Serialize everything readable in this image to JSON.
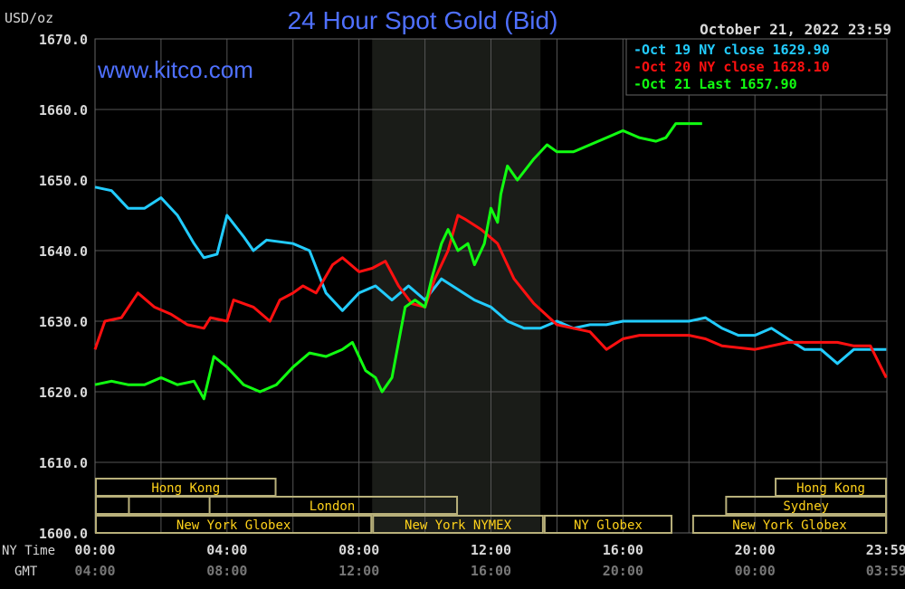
{
  "chart_data": {
    "type": "line",
    "title": "24 Hour Spot Gold (Bid)",
    "watermark": "www.kitco.com",
    "unit_label": "USD/oz",
    "date_label": "October 21, 2022 23:59",
    "ylim": [
      1600,
      1670
    ],
    "yticks": [
      1600,
      1610,
      1620,
      1630,
      1640,
      1650,
      1660,
      1670
    ],
    "ytick_labels": [
      "1600.0",
      "1610.0",
      "1620.0",
      "1630.0",
      "1640.0",
      "1650.0",
      "1660.0",
      "1670.0"
    ],
    "xlim": [
      0,
      24
    ],
    "xtick_hours": [
      0,
      4,
      8,
      12,
      16,
      20,
      23.98
    ],
    "x_row_labels": {
      "ny": "NY Time",
      "gmt": "GMT"
    },
    "xtick_labels_ny": [
      "00:00",
      "04:00",
      "08:00",
      "12:00",
      "16:00",
      "20:00",
      "23:59"
    ],
    "xtick_labels_gmt": [
      "04:00",
      "08:00",
      "12:00",
      "16:00",
      "20:00",
      "00:00",
      "03:59"
    ],
    "shaded_hours": [
      8.4,
      13.5
    ],
    "series": [
      {
        "name": "Oct 19 NY close 1629.90",
        "color": "#22ccff",
        "x": [
          0,
          0.5,
          1,
          1.5,
          2,
          2.5,
          3,
          3.3,
          3.7,
          4,
          4.5,
          4.8,
          5.2,
          6,
          6.5,
          7,
          7.5,
          8,
          8.5,
          9,
          9.5,
          10,
          10.5,
          11,
          11.5,
          12,
          12.5,
          13,
          13.5,
          14,
          14.5,
          15,
          15.5,
          16,
          17,
          18,
          18.5,
          19,
          19.5,
          20,
          20.5,
          21,
          21.5,
          22,
          22.5,
          23,
          23.5,
          23.98
        ],
        "y": [
          1649,
          1648.5,
          1646,
          1646,
          1647.5,
          1645,
          1641,
          1639,
          1639.5,
          1645,
          1642,
          1640,
          1641.5,
          1641,
          1640,
          1634,
          1631.5,
          1634,
          1635,
          1633,
          1635,
          1633,
          1636,
          1634.5,
          1633,
          1632,
          1630,
          1629,
          1629,
          1630,
          1629,
          1629.5,
          1629.5,
          1630,
          1630,
          1630,
          1630.5,
          1629,
          1628,
          1628,
          1629,
          1627.5,
          1626,
          1626,
          1624,
          1626,
          1626,
          1626
        ]
      },
      {
        "name": "Oct 20 NY close 1628.10",
        "color": "#ff1010",
        "x": [
          0,
          0.3,
          0.8,
          1.3,
          1.8,
          2.3,
          2.8,
          3.3,
          3.5,
          4,
          4.2,
          4.8,
          5.3,
          5.6,
          6,
          6.3,
          6.7,
          7.2,
          7.5,
          8,
          8.4,
          8.8,
          9.2,
          9.6,
          10,
          10.3,
          10.7,
          11,
          11.2,
          11.7,
          12.2,
          12.7,
          13.3,
          14,
          14.5,
          15,
          15.5,
          16,
          16.5,
          17,
          18,
          18.5,
          19,
          20,
          21,
          21.5,
          22,
          22.5,
          23,
          23.5,
          23.98
        ],
        "y": [
          1626,
          1630,
          1630.5,
          1634,
          1632,
          1631,
          1629.5,
          1629,
          1630.5,
          1630,
          1633,
          1632,
          1630,
          1633,
          1634,
          1635,
          1634,
          1638,
          1639,
          1637,
          1637.5,
          1638.5,
          1635,
          1632.5,
          1632,
          1636,
          1640,
          1645,
          1644.5,
          1643,
          1641,
          1636,
          1632.5,
          1629.5,
          1629,
          1628.5,
          1626,
          1627.5,
          1628,
          1628,
          1628,
          1627.5,
          1626.5,
          1626,
          1627,
          1627,
          1627,
          1627,
          1626.5,
          1626.5,
          1622
        ]
      },
      {
        "name": "Oct 21 Last 1657.90",
        "color": "#11ff11",
        "x": [
          0,
          0.5,
          1,
          1.5,
          2,
          2.5,
          3,
          3.3,
          3.6,
          4,
          4.5,
          5,
          5.5,
          6,
          6.5,
          7,
          7.5,
          7.8,
          8.2,
          8.5,
          8.7,
          9,
          9.2,
          9.4,
          9.7,
          10,
          10.2,
          10.5,
          10.7,
          11,
          11.3,
          11.5,
          11.8,
          12,
          12.2,
          12.3,
          12.5,
          12.8,
          13.3,
          13.7,
          14,
          14.5,
          15,
          15.5,
          16,
          16.5,
          17,
          17.3,
          17.6,
          18.4
        ],
        "y": [
          1621,
          1621.5,
          1621,
          1621,
          1622,
          1621,
          1621.5,
          1619,
          1625,
          1623.5,
          1621,
          1620,
          1621,
          1623.5,
          1625.5,
          1625,
          1626,
          1627,
          1623,
          1622,
          1620,
          1622,
          1627,
          1632,
          1633,
          1632,
          1636,
          1641,
          1643,
          1640,
          1641,
          1638,
          1641,
          1646,
          1644,
          1648,
          1652,
          1650,
          1653,
          1655,
          1654,
          1654,
          1655,
          1656,
          1657,
          1656,
          1655.5,
          1656,
          1658,
          1658
        ]
      }
    ],
    "legend": [
      "Oct 19 NY close 1629.90",
      "Oct 20 NY close 1628.10",
      "Oct 21 Last 1657.90"
    ],
    "legend_placement": "top-right",
    "sessions": [
      {
        "label": "Hong Kong",
        "row": 0,
        "start": 0,
        "end": 5.5
      },
      {
        "label": "Hong Kong",
        "row": 0,
        "start": 20.6,
        "end": 24
      },
      {
        "label": "",
        "row": 1,
        "start": 1,
        "end": 3.5
      },
      {
        "label": "London",
        "row": 1,
        "start": 0,
        "end": 11
      },
      {
        "label": "Sydney",
        "row": 1,
        "start": 19.1,
        "end": 24
      },
      {
        "label": "New York Globex",
        "row": 2,
        "start": 0,
        "end": 8.4
      },
      {
        "label": "New York NYMEX",
        "row": 2,
        "start": 8.4,
        "end": 13.6
      },
      {
        "label": "NY Globex",
        "row": 2,
        "start": 13.6,
        "end": 17.5
      },
      {
        "label": "New York Globex",
        "row": 2,
        "start": 18.1,
        "end": 24
      }
    ]
  }
}
